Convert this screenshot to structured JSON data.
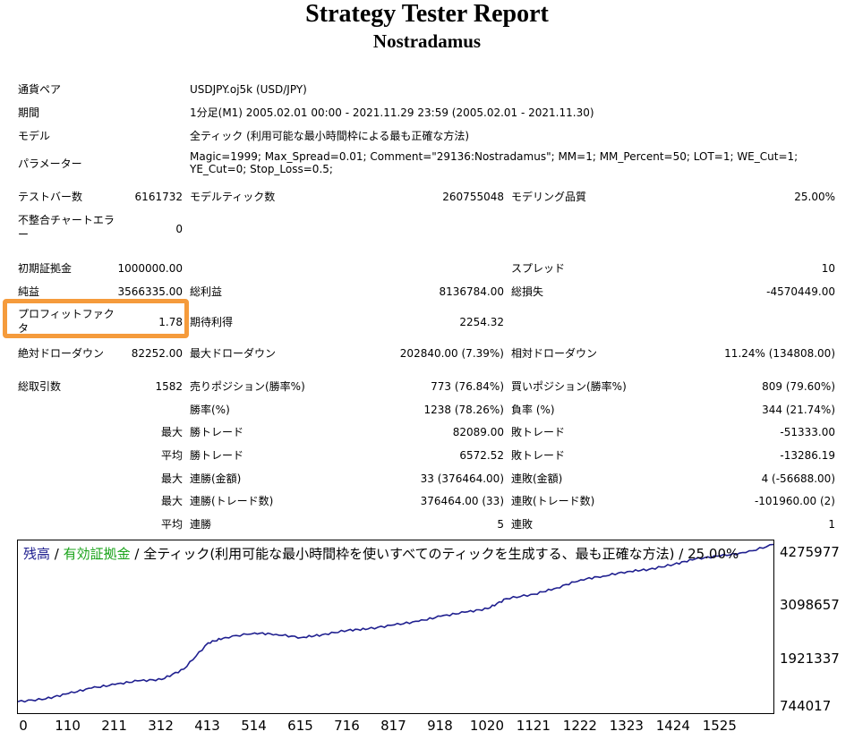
{
  "header": {
    "title": "Strategy Tester Report",
    "subtitle": "Nostradamus"
  },
  "info": {
    "symbol_label": "通貨ペア",
    "symbol": "USDJPY.oj5k (USD/JPY)",
    "period_label": "期間",
    "period": "1分足(M1) 2005.02.01 00:00 - 2021.11.29 23:59 (2005.02.01 - 2021.11.30)",
    "model_label": "モデル",
    "model": "全ティック (利用可能な最小時間枠による最も正確な方法)",
    "params_label": "パラメーター",
    "params": "Magic=1999; Max_Spread=0.01; Comment=\"29136:Nostradamus\"; MM=1; MM_Percent=50; LOT=1; WE_Cut=1; YE_Cut=0; Stop_Loss=0.5;"
  },
  "stats": {
    "bars_label": "テストバー数",
    "bars": "6161732",
    "ticks_label": "モデルティック数",
    "ticks": "260755048",
    "quality_label": "モデリング品質",
    "quality": "25.00%",
    "mismatch_label": "不整合チャートエラー",
    "mismatch": "0",
    "deposit_label": "初期証拠金",
    "deposit": "1000000.00",
    "spread_label": "スプレッド",
    "spread": "10",
    "net_label": "純益",
    "net": "3566335.00",
    "gross_profit_label": "総利益",
    "gross_profit": "8136784.00",
    "gross_loss_label": "総損失",
    "gross_loss": "-4570449.00",
    "pf_label": "プロフィットファクタ",
    "pf": "1.78",
    "expected_label": "期待利得",
    "expected": "2254.32",
    "abs_dd_label": "絶対ドローダウン",
    "abs_dd": "82252.00",
    "max_dd_label": "最大ドローダウン",
    "max_dd": "202840.00 (7.39%)",
    "rel_dd_label": "相対ドローダウン",
    "rel_dd": "11.24% (134808.00)",
    "trades_label": "総取引数",
    "trades": "1582",
    "short_label": "売りポジション(勝率%)",
    "short": "773 (76.84%)",
    "long_label": "買いポジション(勝率%)",
    "long": "809 (79.60%)",
    "win_label": "勝率(%)",
    "win": "1238 (78.26%)",
    "loss_label": "負率 (%)",
    "loss": "344 (21.74%)",
    "max1": "最大",
    "max_win_label": "勝トレード",
    "max_win": "82089.00",
    "max_loss_label": "敗トレード",
    "max_loss": "-51333.00",
    "avg1": "平均",
    "avg_win_label": "勝トレード",
    "avg_win": "6572.52",
    "avg_loss_label": "敗トレード",
    "avg_loss": "-13286.19",
    "max2": "最大",
    "cw_money_label": "連勝(金額)",
    "cw_money": "33 (376464.00)",
    "cl_money_label": "連敗(金額)",
    "cl_money": "4 (-56688.00)",
    "max3": "最大",
    "cw_count_label": "連勝(トレード数)",
    "cw_count": "376464.00 (33)",
    "cl_count_label": "連敗(トレード数)",
    "cl_count": "-101960.00 (2)",
    "avg2": "平均",
    "avg_cw_label": "連勝",
    "avg_cw": "5",
    "avg_cl_label": "連敗",
    "avg_cl": "1"
  },
  "legend": {
    "balance": "残高",
    "sep1": " / ",
    "equity": "有効証拠金",
    "rest": " / 全ティック(利用可能な最小時間枠を使いすべてのティックを生成する、最も正確な方法) / 25.00%",
    "balance_color": "#1f1f8f",
    "equity_color": "#1aa31a"
  },
  "chart_data": {
    "type": "line",
    "title": "",
    "series": [
      {
        "name": "残高",
        "color": "#1f1f8f",
        "x": [
          0,
          60,
          110,
          160,
          211,
          260,
          312,
          360,
          413,
          450,
          514,
          560,
          615,
          660,
          716,
          760,
          817,
          870,
          918,
          970,
          1020,
          1060,
          1121,
          1170,
          1222,
          1270,
          1323,
          1370,
          1424,
          1470,
          1525,
          1580,
          1640
        ],
        "y": [
          1000000,
          1060000,
          1180000,
          1300000,
          1380000,
          1460000,
          1490000,
          1720000,
          2300000,
          2420000,
          2520000,
          2490000,
          2420000,
          2480000,
          2580000,
          2610000,
          2700000,
          2780000,
          2890000,
          2980000,
          3060000,
          3280000,
          3380000,
          3520000,
          3700000,
          3780000,
          3880000,
          3930000,
          4040000,
          4160000,
          4230000,
          4300000,
          4480000
        ]
      }
    ],
    "x_ticks": [
      "0",
      "110",
      "211",
      "312",
      "413",
      "514",
      "615",
      "716",
      "817",
      "918",
      "1020",
      "1121",
      "1222",
      "1323",
      "1424",
      "1525"
    ],
    "y_ticks": [
      "4275977",
      "3098657",
      "1921337",
      "744017"
    ],
    "xlim": [
      0,
      1640
    ],
    "ylim": [
      744017,
      4570000
    ]
  }
}
